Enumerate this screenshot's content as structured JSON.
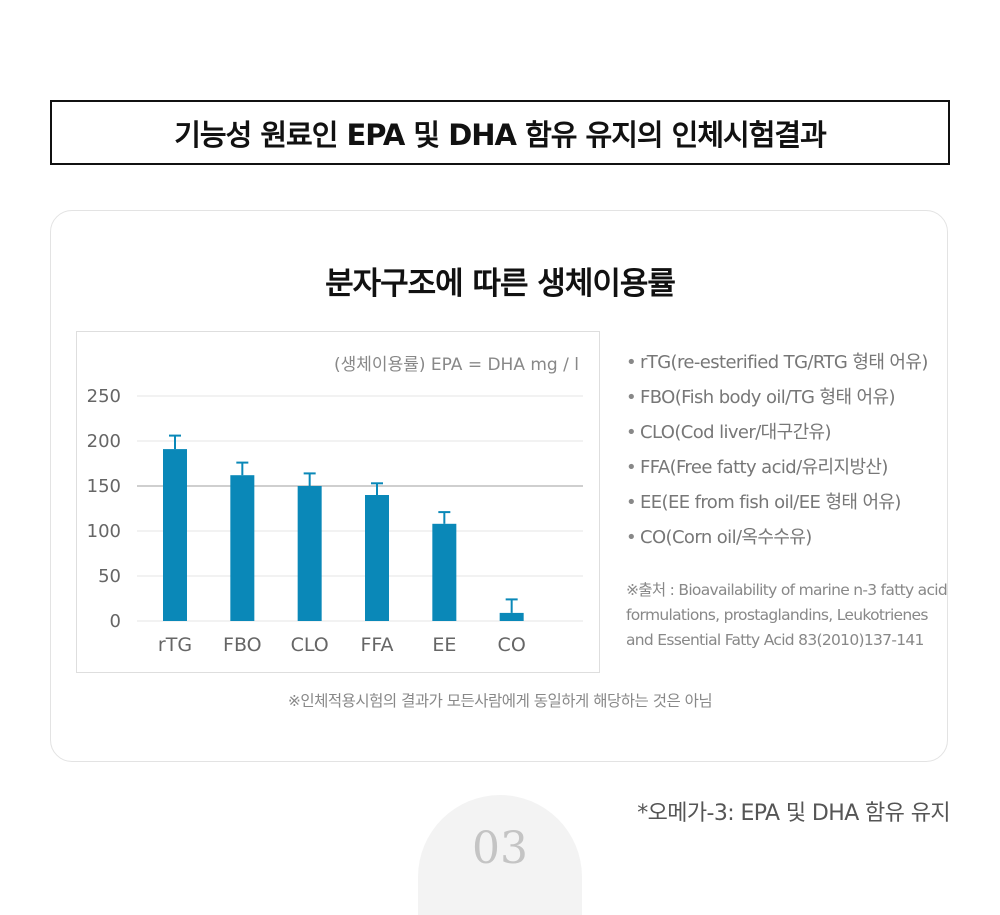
{
  "header": {
    "title": "기능성 원료인 EPA 및 DHA 함유 유지의 인체시험결과"
  },
  "card": {
    "title": "분자구조에 따른 생체이용률",
    "note": "※인체적용시험의 결과가 모든사람에게 동일하게 해당하는 것은 아님"
  },
  "chart_data": {
    "type": "bar",
    "unit_label": "(생체이용률) EPA = DHA mg / l",
    "categories": [
      "rTG",
      "FBO",
      "CLO",
      "FFA",
      "EE",
      "CO"
    ],
    "values": [
      191,
      162,
      150,
      140,
      108,
      9
    ],
    "error_upper": [
      206,
      176,
      164,
      153,
      121,
      24
    ],
    "ylim": [
      0,
      250
    ],
    "yticks": [
      0,
      50,
      100,
      150,
      200,
      250
    ],
    "bar_color": "#0a88b8",
    "grid": true
  },
  "legend": {
    "bullet": "•",
    "items": [
      "rTG(re-esterified TG/RTG 형태 어유)",
      "FBO(Fish body oil/TG 형태 어유)",
      "CLO(Cod liver/대구간유)",
      "FFA(Free fatty acid/유리지방산)",
      "EE(EE from fish oil/EE 형태 어유)",
      "CO(Corn oil/옥수수유)"
    ]
  },
  "source": {
    "line1": "※출처 : Bioavailability of marine n-3 fatty acid",
    "line2": "formulations, prostaglandins, Leukotrienes",
    "line3": "and Essential Fatty Acid 83(2010)137-141"
  },
  "footnote": "*오메가-3: EPA 및 DHA 함유 유지",
  "decoration": {
    "number": "03"
  }
}
